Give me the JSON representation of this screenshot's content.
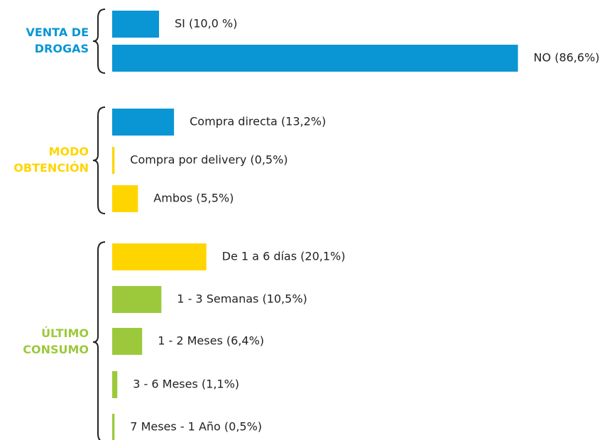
{
  "chart_data": {
    "type": "bar",
    "orientation": "horizontal",
    "xlim": [
      0,
      100
    ],
    "groups": [
      {
        "name_lines": [
          "VENTA DE",
          "DROGAS"
        ],
        "color": "#0a96d4",
        "bars": [
          {
            "label": "SI (10,0 %)",
            "value": 10.0,
            "color": "#0a96d4"
          },
          {
            "label": "NO (86,6%)",
            "value": 86.6,
            "color": "#0a96d4"
          }
        ]
      },
      {
        "name_lines": [
          "MODO",
          "OBTENCIÓN"
        ],
        "color": "#ffd500",
        "bars": [
          {
            "label": "Compra directa (13,2%)",
            "value": 13.2,
            "color": "#0a96d4"
          },
          {
            "label": "Compra por delivery (0,5%)",
            "value": 0.5,
            "color": "#ffd500"
          },
          {
            "label": "Ambos (5,5%)",
            "value": 5.5,
            "color": "#ffd500"
          }
        ]
      },
      {
        "name_lines": [
          "ÚLTIMO",
          "CONSUMO"
        ],
        "color": "#9cc93c",
        "bars": [
          {
            "label": "De 1 a 6 días (20,1%)",
            "value": 20.1,
            "color": "#ffd500"
          },
          {
            "label": "1 - 3 Semanas (10,5%)",
            "value": 10.5,
            "color": "#9cc93c"
          },
          {
            "label": "1 - 2 Meses (6,4%)",
            "value": 6.4,
            "color": "#9cc93c"
          },
          {
            "label": "3 - 6 Meses (1,1%)",
            "value": 1.1,
            "color": "#9cc93c"
          },
          {
            "label": "7 Meses - 1 Año (0,5%)",
            "value": 0.5,
            "color": "#9cc93c"
          }
        ]
      }
    ]
  }
}
